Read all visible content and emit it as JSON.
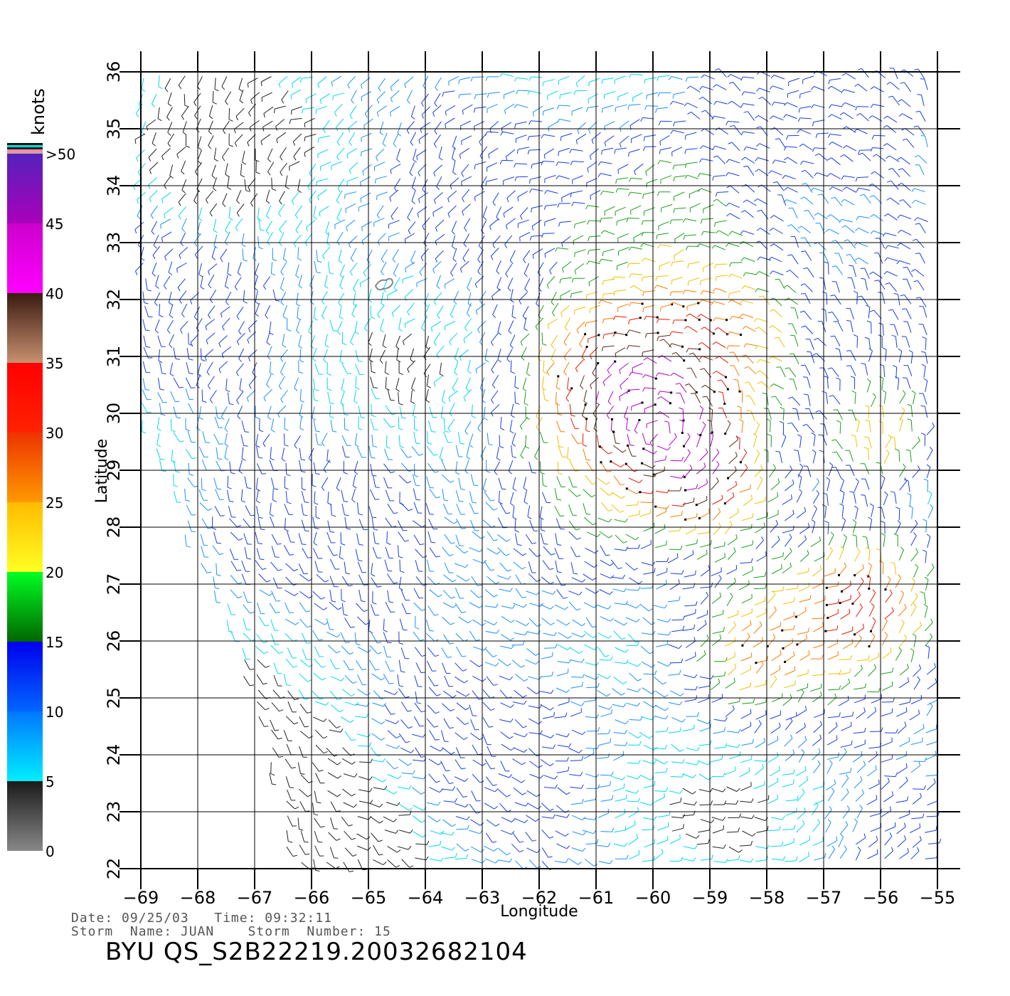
{
  "chart_data": {
    "type": "scatter",
    "subtype": "wind-barb-field",
    "xlabel": "Longitude",
    "ylabel": "Latitude",
    "xlim": [
      -69,
      -55
    ],
    "ylim": [
      22,
      36
    ],
    "x_ticks": [
      "−69",
      "−68",
      "−67",
      "−66",
      "−65",
      "−64",
      "−63",
      "−62",
      "−61",
      "−60",
      "−59",
      "−58",
      "−57",
      "−56",
      "−55"
    ],
    "y_ticks": [
      "22",
      "23",
      "24",
      "25",
      "26",
      "27",
      "28",
      "29",
      "30",
      "31",
      "32",
      "33",
      "34",
      "35",
      "36"
    ],
    "grid": true,
    "colorbar": {
      "title": "knots",
      "position": "left",
      "labels": [
        "0",
        "5",
        "10",
        "15",
        "20",
        "25",
        "30",
        "35",
        "40",
        "45",
        ">50"
      ],
      "bands": [
        {
          "range": [
            0,
            5
          ],
          "colors": [
            "#888888",
            "#1a1a1a"
          ]
        },
        {
          "range": [
            5,
            10
          ],
          "colors": [
            "#00eeff",
            "#0077ff"
          ]
        },
        {
          "range": [
            10,
            15
          ],
          "colors": [
            "#0066ff",
            "#0000ee"
          ]
        },
        {
          "range": [
            15,
            20
          ],
          "colors": [
            "#006600",
            "#00ff22"
          ]
        },
        {
          "range": [
            20,
            25
          ],
          "colors": [
            "#ffff22",
            "#ffbb00"
          ]
        },
        {
          "range": [
            25,
            30
          ],
          "colors": [
            "#ff9900",
            "#ee3300"
          ]
        },
        {
          "range": [
            30,
            35
          ],
          "colors": [
            "#ff2200",
            "#ff0000"
          ]
        },
        {
          "range": [
            35,
            40
          ],
          "colors": [
            "#c89070",
            "#3a1a10"
          ]
        },
        {
          "range": [
            40,
            45
          ],
          "colors": [
            "#ff00ff",
            "#cc00cc"
          ]
        },
        {
          "range": [
            45,
            50
          ],
          "colors": [
            "#aa00bb",
            "#5522bb"
          ]
        }
      ]
    },
    "wind_features": [
      {
        "lon": -60.5,
        "lat": 30.5,
        "radius_deg": 1.6,
        "peak_knots": 38
      },
      {
        "lon": -59.2,
        "lat": 28.9,
        "radius_deg": 1.1,
        "peak_knots": 36
      },
      {
        "lon": -56.3,
        "lat": 26.7,
        "radius_deg": 1.2,
        "peak_knots": 32
      },
      {
        "lon": -56.0,
        "lat": 29.5,
        "radius_deg": 0.9,
        "peak_knots": 28
      },
      {
        "lon": -58.5,
        "lat": 31.5,
        "radius_deg": 1.4,
        "peak_knots": 26
      },
      {
        "lon": -59.5,
        "lat": 33.5,
        "radius_deg": 1.5,
        "peak_knots": 20
      },
      {
        "lon": -58.2,
        "lat": 25.8,
        "radius_deg": 1.0,
        "peak_knots": 24
      },
      {
        "lon": -61.5,
        "lat": 27.5,
        "radius_deg": 1.3,
        "peak_knots": 17
      }
    ],
    "calm_regions": [
      {
        "lon": -67.8,
        "lat": 34.8,
        "radius_deg": 1.2
      },
      {
        "lon": -65.5,
        "lat": 22.6,
        "radius_deg": 1.4
      },
      {
        "lon": -66.2,
        "lat": 23.8,
        "radius_deg": 0.8
      }
    ],
    "swath_west_edge": [
      [
        -69,
        36
      ],
      [
        -69,
        30
      ],
      [
        -68.3,
        28
      ],
      [
        -67.4,
        26
      ],
      [
        -66.8,
        24
      ],
      [
        -66.4,
        22
      ]
    ]
  },
  "info": {
    "date_line": "Date: 09/25/03   Time: 09:32:11",
    "storm_line": "Storm  Name: JUAN    Storm  Number: 15",
    "product_id": "BYU  QS_S2B22219.20032682104"
  }
}
